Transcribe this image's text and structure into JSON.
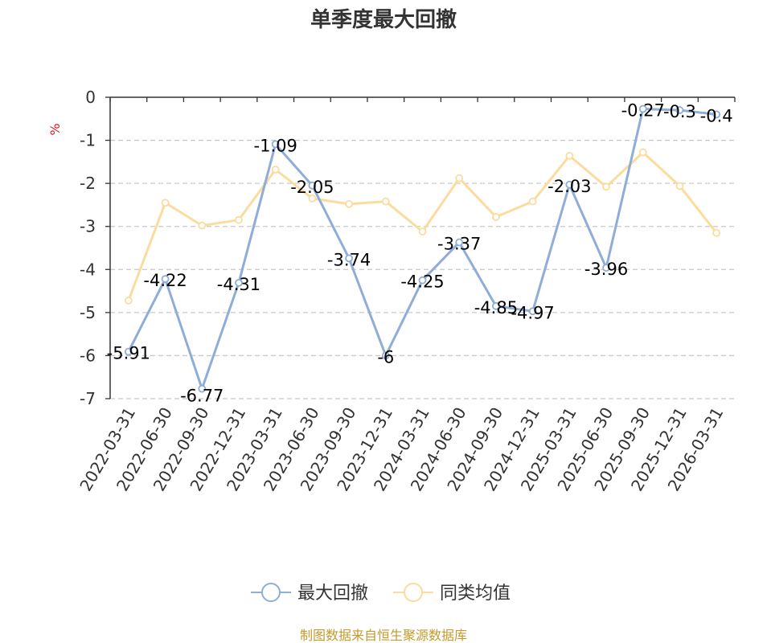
{
  "title": "单季度最大回撤",
  "source": "制图数据来自恒生聚源数据库",
  "colors": {
    "series1": "#8eadd8",
    "series2": "#fbdc9e",
    "grid": "#c8c8c8",
    "axis": "#333333",
    "unit": "#e0191b",
    "source": "#c49a2c"
  },
  "chart_data": {
    "type": "line",
    "title": "单季度最大回撤",
    "ylabel": "%",
    "xlabel": "",
    "ylim": [
      -7,
      0
    ],
    "yticks": [
      0,
      -1,
      -2,
      -3,
      -4,
      -5,
      -6,
      -7
    ],
    "grid": true,
    "legend_position": "bottom",
    "categories": [
      "2022-03-31",
      "2022-06-30",
      "2022-09-30",
      "2022-12-31",
      "2023-03-31",
      "2023-06-30",
      "2023-09-30",
      "2023-12-31",
      "2024-03-31",
      "2024-06-30",
      "2024-09-30",
      "2024-12-31",
      "2025-03-31",
      "2025-06-30",
      "2025-09-30",
      "2025-12-31",
      "2026-03-31"
    ],
    "series": [
      {
        "name": "最大回撤",
        "values": [
          -5.91,
          -4.22,
          -6.77,
          -4.31,
          -1.09,
          -2.05,
          -3.74,
          -6,
          -4.25,
          -3.37,
          -4.85,
          -4.97,
          -2.03,
          -3.96,
          -0.27,
          -0.3,
          -0.4
        ],
        "labels": [
          "-5.91",
          "-4.22",
          "-6.77",
          "-4.31",
          "-1.09",
          "-2.05",
          "-3.74",
          "-6",
          "-4.25",
          "-3.37",
          "-4.85",
          "-4.97",
          "-2.03",
          "-3.96",
          "-0.27",
          "-0.3",
          "-0.4"
        ]
      },
      {
        "name": "同类均值",
        "values": [
          -4.72,
          -2.45,
          -2.98,
          -2.85,
          -1.68,
          -2.35,
          -2.48,
          -2.42,
          -3.12,
          -1.88,
          -2.78,
          -2.42,
          -1.36,
          -2.08,
          -1.28,
          -2.06,
          -3.15
        ]
      }
    ]
  }
}
